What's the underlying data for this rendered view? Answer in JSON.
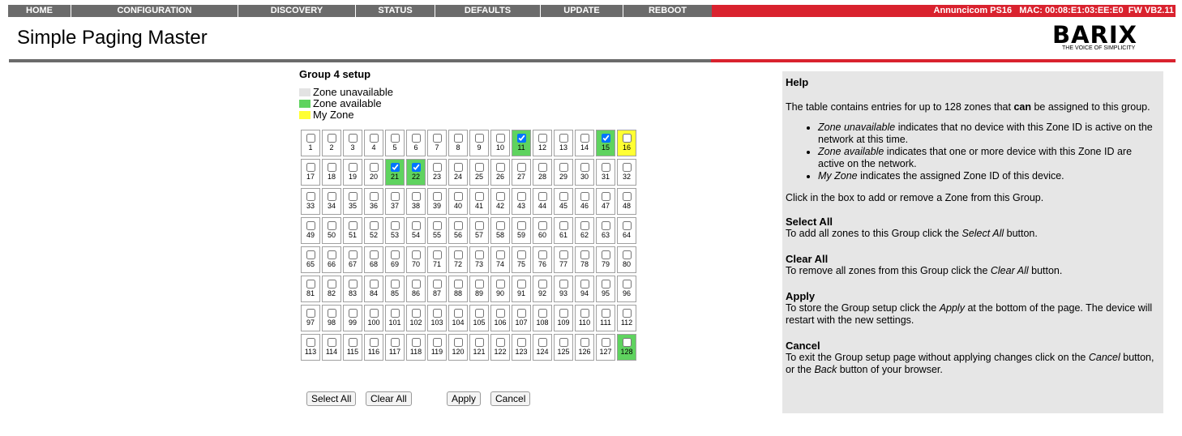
{
  "nav": {
    "items": [
      "HOME",
      "CONFIGURATION",
      "DISCOVERY",
      "STATUS",
      "DEFAULTS",
      "UPDATE",
      "REBOOT"
    ],
    "device": "Annuncicom PS16",
    "mac": "MAC: 00:08:E1:03:EE:E0",
    "firmware": "FW VB2.11"
  },
  "header": {
    "title": "Simple Paging Master",
    "logo": "BARIX",
    "tagline": "THE VOICE OF SIMPLICITY"
  },
  "group": {
    "title": "Group 4 setup",
    "legend": [
      {
        "label": "Zone unavailable",
        "color": "#e3e3e3"
      },
      {
        "label": "Zone available",
        "color": "#5fd35f"
      },
      {
        "label": "My Zone",
        "color": "#ffff33"
      }
    ],
    "zones": [
      1,
      2,
      3,
      4,
      5,
      6,
      7,
      8,
      9,
      10,
      11,
      12,
      13,
      14,
      15,
      16,
      17,
      18,
      19,
      20,
      21,
      22,
      23,
      24,
      25,
      26,
      27,
      28,
      29,
      30,
      31,
      32,
      33,
      34,
      35,
      36,
      37,
      38,
      39,
      40,
      41,
      42,
      43,
      44,
      45,
      46,
      47,
      48,
      49,
      50,
      51,
      52,
      53,
      54,
      55,
      56,
      57,
      58,
      59,
      60,
      61,
      62,
      63,
      64,
      65,
      66,
      67,
      68,
      69,
      70,
      71,
      72,
      73,
      74,
      75,
      76,
      77,
      78,
      79,
      80,
      81,
      82,
      83,
      84,
      85,
      86,
      87,
      88,
      89,
      90,
      91,
      92,
      93,
      94,
      95,
      96,
      97,
      98,
      99,
      100,
      101,
      102,
      103,
      104,
      105,
      106,
      107,
      108,
      109,
      110,
      111,
      112,
      113,
      114,
      115,
      116,
      117,
      118,
      119,
      120,
      121,
      122,
      123,
      124,
      125,
      126,
      127,
      128
    ],
    "available": [
      11,
      15,
      21,
      22,
      128
    ],
    "my_zone": 16,
    "checked": [
      11,
      15,
      21,
      22
    ],
    "buttons": [
      "Select All",
      "Clear All",
      "Apply",
      "Cancel"
    ]
  },
  "help": {
    "title": "Help",
    "intro": [
      {
        "text": "The table contains entries for up to 128 zones that "
      },
      {
        "text": "can",
        "style": "bold"
      },
      {
        "text": " be assigned to this group."
      }
    ],
    "bullets": [
      [
        {
          "text": "Zone unavailable",
          "style": "italic"
        },
        {
          "text": " indicates that no device with this Zone ID is active on the network at this time."
        }
      ],
      [
        {
          "text": "Zone available",
          "style": "italic"
        },
        {
          "text": " indicates that one or more device with this Zone ID are active on the network."
        }
      ],
      [
        {
          "text": "My Zone",
          "style": "italic"
        },
        {
          "text": " indicates the assigned Zone ID of this device."
        }
      ]
    ],
    "note": [
      {
        "text": "Click in the box to add or remove a Zone from this Group."
      }
    ],
    "sections": [
      {
        "heading": "Select All",
        "body": [
          {
            "text": "To add all zones to this Group click the "
          },
          {
            "text": "Select All",
            "style": "italic"
          },
          {
            "text": " button."
          }
        ]
      },
      {
        "heading": "Clear All",
        "body": [
          {
            "text": "To remove all zones from this Group click the "
          },
          {
            "text": "Clear All",
            "style": "italic"
          },
          {
            "text": " button."
          }
        ]
      },
      {
        "heading": "Apply",
        "body": [
          {
            "text": "To store the Group setup click the "
          },
          {
            "text": "Apply",
            "style": "italic"
          },
          {
            "text": " at the bottom of the page. The device will restart with the new settings."
          }
        ]
      },
      {
        "heading": "Cancel",
        "body": [
          {
            "text": "To exit the Group setup page without applying changes click on the "
          },
          {
            "text": "Cancel",
            "style": "italic"
          },
          {
            "text": " button, or the "
          },
          {
            "text": "Back",
            "style": "italic"
          },
          {
            "text": " button of your browser."
          }
        ]
      }
    ]
  }
}
